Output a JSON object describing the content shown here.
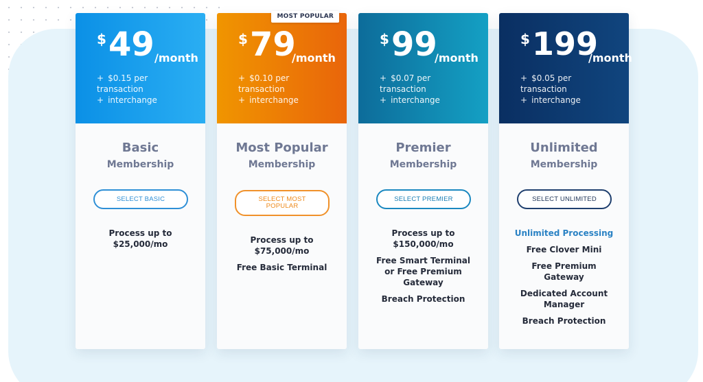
{
  "colors": {
    "basic_gradient": [
      "#0b90e6",
      "#2aaef3"
    ],
    "popular_gradient": [
      "#f09500",
      "#e9650a"
    ],
    "premier_gradient": [
      "#0d6c9a",
      "#14a0c4"
    ],
    "unlimited_gradient": [
      "#0a2f62",
      "#10457e"
    ],
    "tier_text": "#6f7893",
    "highlight_text": "#2a82c4"
  },
  "plans": [
    {
      "currency": "$",
      "price": "49",
      "period": "/month",
      "fee_line1": "$0.15 per transaction",
      "fee_line2": "interchange",
      "name": "Basic",
      "name_sub": "Membership",
      "button": "SELECT BASIC",
      "features": [
        "Process up to $25,000/mo"
      ]
    },
    {
      "badge": "MOST POPULAR",
      "currency": "$",
      "price": "79",
      "period": "/month",
      "fee_line1": "$0.10 per transaction",
      "fee_line2": "interchange",
      "name": "Most Popular",
      "name_sub": "Membership",
      "button": "SELECT MOST POPULAR",
      "features": [
        "Process up to $75,000/mo",
        "Free Basic Terminal"
      ]
    },
    {
      "currency": "$",
      "price": "99",
      "period": "/month",
      "fee_line1": "$0.07 per transaction",
      "fee_line2": "interchange",
      "name": "Premier",
      "name_sub": "Membership",
      "button": "SELECT PREMIER",
      "features": [
        "Process up to $150,000/mo",
        "Free Smart Terminal or Free Premium Gateway",
        "Breach Protection"
      ]
    },
    {
      "currency": "$",
      "price": "199",
      "period": "/month",
      "fee_line1": "$0.05 per transaction",
      "fee_line2": "interchange",
      "name": "Unlimited",
      "name_sub": "Membership",
      "button": "SELECT UNLIMITED",
      "features": [
        "Unlimited Processing",
        "Free Clover Mini",
        "Free Premium Gateway",
        "Dedicated Account Manager",
        "Breach Protection"
      ]
    }
  ]
}
